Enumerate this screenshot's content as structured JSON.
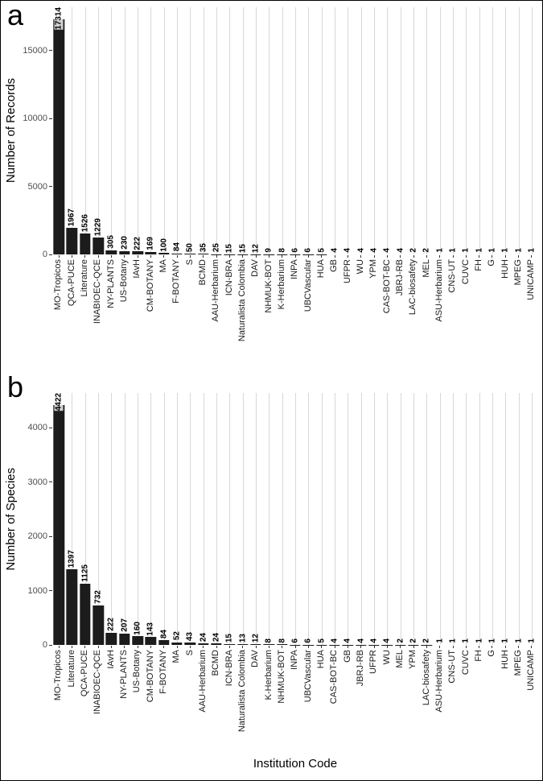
{
  "figure": {
    "xlabel": "Institution Code",
    "bar_color": "#1c1c1c",
    "grid_color": "#d8d8d8",
    "text_color": "#000000",
    "tick_text_color": "#4d4d4d"
  },
  "chart_data": [
    {
      "type": "bar",
      "panel_tag": "a",
      "ylabel": "Number of Records",
      "xlabel": "",
      "yticks": [
        0,
        5000,
        10000,
        15000
      ],
      "ylim": [
        0,
        18200
      ],
      "grid": "vertical-major",
      "legend": "none",
      "categories": [
        "MO-Tropicos",
        "QCA-PUCE",
        "Literature",
        "INABIOEC-QCE",
        "NY-PLANTS",
        "US-Botany",
        "IAvH",
        "CM-BOTANY",
        "MA",
        "F-BOTANY",
        "S",
        "BCMD",
        "AAU-Herbarium",
        "ICN-BRA",
        "Naturalista Colombia",
        "DAV",
        "NHMUK-BOT",
        "K-Herbarium",
        "INPA",
        "UBCVascular",
        "HUA",
        "GB",
        "UFPR",
        "WU",
        "YPM",
        "CAS-BOT-BC",
        "JBRJ-RB",
        "LAC-biosafety",
        "MEL",
        "ASU-Herbarium",
        "CNS-UT",
        "CUVC",
        "FH",
        "G",
        "HUH",
        "MPEG",
        "UNICAMP"
      ],
      "values": [
        17314,
        1967,
        1526,
        1229,
        305,
        230,
        222,
        169,
        100,
        84,
        50,
        35,
        25,
        15,
        15,
        12,
        9,
        8,
        6,
        6,
        5,
        4,
        4,
        4,
        4,
        4,
        4,
        2,
        2,
        1,
        1,
        1,
        1,
        1,
        1,
        1,
        1
      ]
    },
    {
      "type": "bar",
      "panel_tag": "b",
      "ylabel": "Number of Species",
      "xlabel": "Institution Code",
      "yticks": [
        0,
        1000,
        2000,
        3000,
        4000
      ],
      "ylim": [
        0,
        4643
      ],
      "grid": "vertical-major",
      "legend": "none",
      "categories": [
        "MO-Tropicos",
        "Literature",
        "QCA-PUCE",
        "INABIOEC-QCE",
        "IAvH",
        "NY-PLANTS",
        "US-Botany",
        "CM-BOTANY",
        "F-BOTANY",
        "MA",
        "S",
        "AAU-Herbarium",
        "BCMD",
        "ICN-BRA",
        "Naturalista Colombia",
        "DAV",
        "K-Herbarium",
        "NHMUK-BOT",
        "INPA",
        "UBCVascular",
        "HUA",
        "CAS-BOT-BC",
        "GB",
        "JBRJ-RB",
        "UFPR",
        "WU",
        "MEL",
        "YPM",
        "LAC-biosafety",
        "ASU-Herbarium",
        "CNS-UT",
        "CUVC",
        "FH",
        "G",
        "HUH",
        "MPEG",
        "UNICAMP"
      ],
      "values": [
        4422,
        1397,
        1125,
        732,
        222,
        207,
        160,
        143,
        84,
        52,
        43,
        24,
        24,
        15,
        13,
        12,
        8,
        8,
        6,
        6,
        5,
        4,
        4,
        4,
        4,
        4,
        2,
        2,
        2,
        1,
        1,
        1,
        1,
        1,
        1,
        1,
        1
      ]
    }
  ]
}
